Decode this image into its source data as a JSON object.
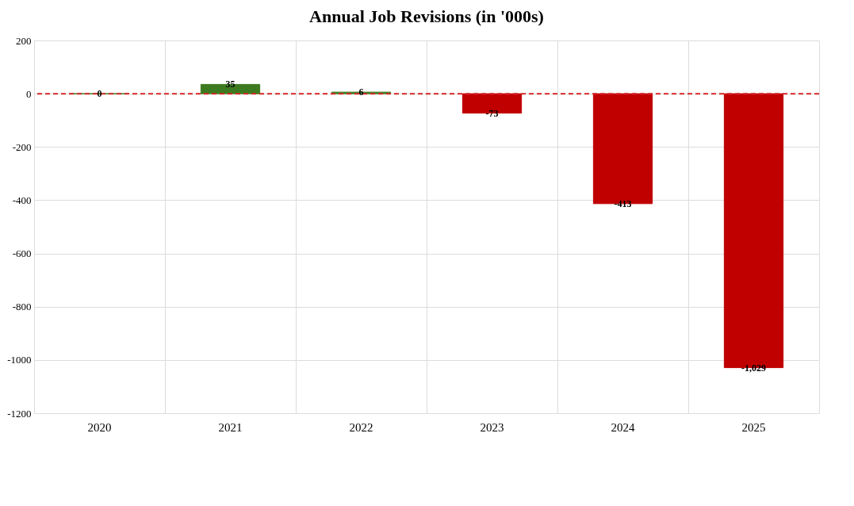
{
  "chart_data": {
    "type": "bar",
    "title": "Annual Job Revisions (in '000s)",
    "categories": [
      "2020",
      "2021",
      "2022",
      "2023",
      "2024",
      "2025"
    ],
    "values": [
      0,
      35,
      6,
      -73,
      -413,
      -1029
    ],
    "colors": [
      "#3d7a1f",
      "#3d7a1f",
      "#3d7a1f",
      "#c00000",
      "#c00000",
      "#c00000"
    ],
    "value_labels": [
      "0",
      "35",
      "6",
      "-73",
      "-413",
      "-1,029"
    ],
    "ylim": [
      -1200,
      200
    ],
    "yticks": [
      -1200,
      -1000,
      -800,
      -600,
      -400,
      -200,
      0,
      200
    ],
    "grid": true,
    "ref_lines": [
      {
        "axis": "y",
        "value": 0,
        "color": "#d62728",
        "line_style": "dashed"
      }
    ]
  }
}
